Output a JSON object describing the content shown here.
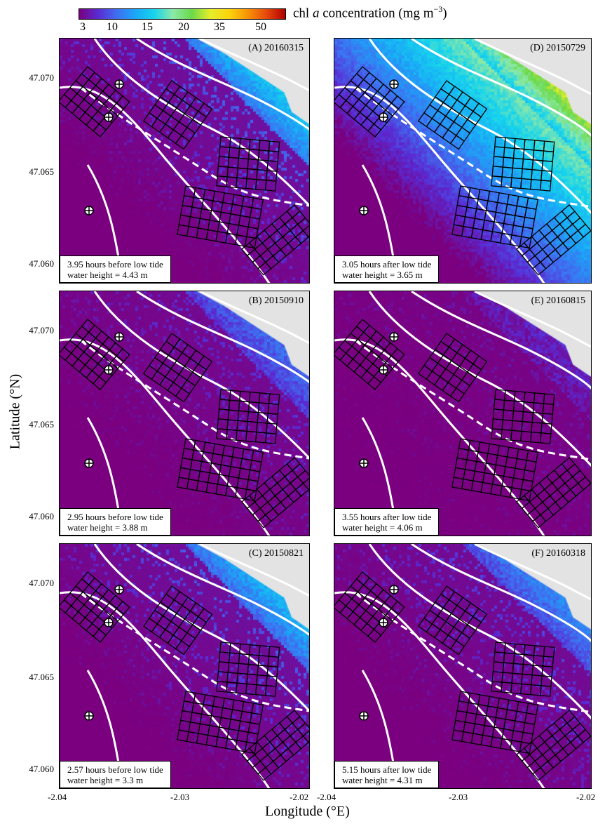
{
  "colorbar": {
    "title_pre": "chl",
    "title_var": "a",
    "title_post": "concentration (mg m",
    "title_exp": "−3",
    "title_close": ")",
    "ticks": [
      "3",
      "10",
      "15",
      "20",
      "35",
      "50"
    ],
    "colors": [
      "#7a007f",
      "#5a2ad2",
      "#3f6ef0",
      "#1aa8f7",
      "#16d4ec",
      "#8ce8a8",
      "#6ad94a",
      "#e6ec2a",
      "#fbd40c",
      "#f79206",
      "#e6480c",
      "#b00000"
    ]
  },
  "axes": {
    "xlabel": "Longitude (°E)",
    "ylabel": "Latitude (°N)",
    "yticks": [
      "47.070",
      "47.065",
      "47.060"
    ],
    "xticks_left": [
      "-2.04",
      "-2.03",
      "-2.02"
    ],
    "xticks_right": [
      "-2.04",
      "-2.03",
      "-2.02"
    ]
  },
  "chart_data": [
    {
      "type": "heatmap",
      "panel": "(A) 20160315",
      "line1": "3.95 hours before low tide",
      "line2": "water height = 4.43 m",
      "hours": 3.95,
      "timing": "before low tide",
      "water_height_m": 4.43,
      "level": 0.55,
      "xlim": [
        -2.04,
        -2.02
      ],
      "ylim": [
        47.0595,
        47.0725
      ]
    },
    {
      "type": "heatmap",
      "panel": "(D) 20150729",
      "line1": "3.05 hours after low tide",
      "line2": "water height = 3.65 m",
      "hours": 3.05,
      "timing": "after low tide",
      "water_height_m": 3.65,
      "level": 1.0,
      "xlim": [
        -2.04,
        -2.02
      ],
      "ylim": [
        47.0595,
        47.0725
      ]
    },
    {
      "type": "heatmap",
      "panel": "(B) 20150910",
      "line1": "2.95 hours before low tide",
      "line2": "water height = 3.88 m",
      "hours": 2.95,
      "timing": "before low tide",
      "water_height_m": 3.88,
      "level": 0.3,
      "xlim": [
        -2.04,
        -2.02
      ],
      "ylim": [
        47.0595,
        47.0725
      ]
    },
    {
      "type": "heatmap",
      "panel": "(E) 20160815",
      "line1": "3.55 hours after low tide",
      "line2": "water height = 4.06 m",
      "hours": 3.55,
      "timing": "after low tide",
      "water_height_m": 4.06,
      "level": 0.12,
      "xlim": [
        -2.04,
        -2.02
      ],
      "ylim": [
        47.0595,
        47.0725
      ]
    },
    {
      "type": "heatmap",
      "panel": "(C) 20150821",
      "line1": "2.57 hours before low tide",
      "line2": "water height = 3.3 m",
      "hours": 2.57,
      "timing": "before low tide",
      "water_height_m": 3.3,
      "level": 0.5,
      "xlim": [
        -2.04,
        -2.02
      ],
      "ylim": [
        47.0595,
        47.0725
      ]
    },
    {
      "type": "heatmap",
      "panel": "(F) 20160318",
      "line1": "5.15 hours after low tide",
      "line2": "water height = 4.31 m",
      "hours": 5.15,
      "timing": "after low tide",
      "water_height_m": 4.31,
      "level": 0.38,
      "xlim": [
        -2.04,
        -2.02
      ],
      "ylim": [
        47.0595,
        47.0725
      ]
    }
  ]
}
